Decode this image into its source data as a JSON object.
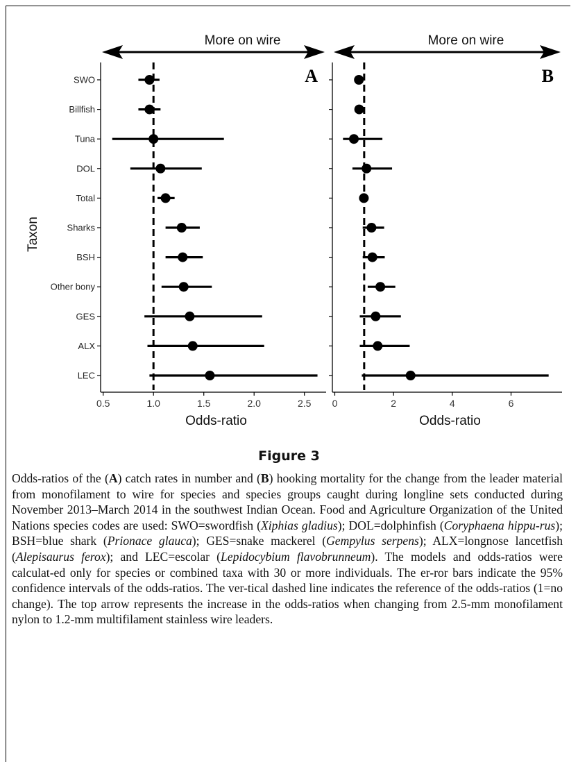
{
  "chart_data": [
    {
      "panel": "A",
      "type": "scatter",
      "error_bars": true,
      "top_arrow_label": "More on wire",
      "xlabel": "Odds-ratio",
      "ylabel": "Taxon",
      "xlim": [
        0.48,
        2.72
      ],
      "xticks": [
        "0.5",
        "1.0",
        "1.5",
        "2.0",
        "2.5"
      ],
      "reference_line": 1,
      "categories": [
        "SWO",
        "Billfish",
        "Tuna",
        "DOL",
        "Total",
        "Sharks",
        "BSH",
        "Other bony",
        "GES",
        "ALX",
        "LEC"
      ],
      "estimates": [
        0.96,
        0.96,
        1.0,
        1.07,
        1.12,
        1.28,
        1.29,
        1.3,
        1.36,
        1.39,
        1.56
      ],
      "ci_low": [
        0.85,
        0.85,
        0.59,
        0.77,
        1.04,
        1.12,
        1.12,
        1.08,
        0.91,
        0.94,
        0.96
      ],
      "ci_high": [
        1.06,
        1.07,
        1.7,
        1.48,
        1.21,
        1.46,
        1.49,
        1.58,
        2.08,
        2.1,
        2.63
      ]
    },
    {
      "panel": "B",
      "type": "scatter",
      "error_bars": true,
      "top_arrow_label": "More on wire",
      "xlabel": "Odds-ratio",
      "ylabel": "",
      "xlim": [
        -0.05,
        7.5
      ],
      "xticks": [
        "0",
        "2",
        "4",
        "6"
      ],
      "reference_line": 1,
      "categories": [
        "SWO",
        "Billfish",
        "Tuna",
        "DOL",
        "Total",
        "Sharks",
        "BSH",
        "Other bony",
        "GES",
        "ALX",
        "LEC"
      ],
      "estimates": [
        0.82,
        0.83,
        0.65,
        1.08,
        0.99,
        1.25,
        1.28,
        1.55,
        1.39,
        1.46,
        2.58
      ],
      "ci_low": [
        0.74,
        0.74,
        0.28,
        0.6,
        0.9,
        0.95,
        0.95,
        1.12,
        0.85,
        0.85,
        0.92
      ],
      "ci_high": [
        0.91,
        0.94,
        1.62,
        1.95,
        1.09,
        1.68,
        1.7,
        2.06,
        2.25,
        2.55,
        7.28
      ]
    }
  ],
  "figure": {
    "title": "Figure 3",
    "caption": [
      {
        "t": "Odds-ratios of the ("
      },
      {
        "t": "A",
        "s": "b"
      },
      {
        "t": ") catch rates in number and ("
      },
      {
        "t": "B",
        "s": "b"
      },
      {
        "t": ") hooking mortality for the change from the leader material from monofilament to wire for species and species groups caught during longline sets conducted during November 2013–March 2014 in the southwest Indian Ocean. Food and Agriculture Organization of the United Nations species codes are used: SWO=swordfish ("
      },
      {
        "t": "Xiphias gladius",
        "s": "i"
      },
      {
        "t": "); DOL=dolphinfish ("
      },
      {
        "t": "Coryphaena hippu-rus",
        "s": "i"
      },
      {
        "t": "); BSH=blue shark ("
      },
      {
        "t": "Prionace glauca",
        "s": "i"
      },
      {
        "t": "); GES=snake mackerel ("
      },
      {
        "t": "Gempylus serpens",
        "s": "i"
      },
      {
        "t": "); ALX=longnose lancetfish ("
      },
      {
        "t": "Alepisaurus ferox",
        "s": "i"
      },
      {
        "t": "); and LEC=escolar ("
      },
      {
        "t": "Lepidocybium flavobrunneum",
        "s": "i"
      },
      {
        "t": "). The models and odds-ratios were calculat-ed only for species or combined taxa with 30 or more individuals. The er-ror bars indicate the 95% confidence intervals of the odds-ratios. The ver-tical dashed line indicates the reference of the odds-ratios (1=no change). The top arrow represents the increase in the odds-ratios when changing from 2.5-mm monofilament nylon to 1.2-mm multifilament stainless wire leaders."
      }
    ]
  }
}
